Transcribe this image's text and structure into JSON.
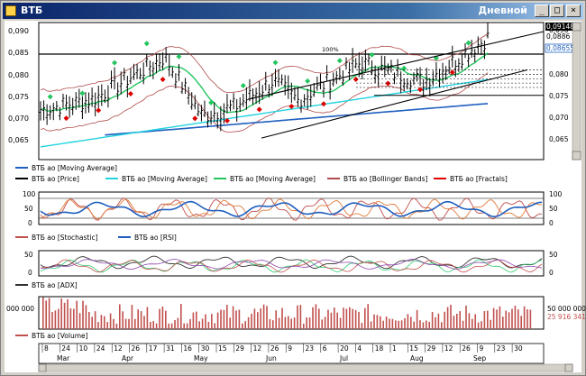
{
  "window": {
    "title": "ВТБ",
    "mode": "Дневной",
    "buttons": [
      "_",
      "□",
      "×"
    ]
  },
  "price_panel": {
    "y_ticks": [
      "0,090",
      "0,085",
      "0,080",
      "0,075",
      "0,070",
      "0,065"
    ],
    "last_price_top": "0,09148",
    "last_price_2": "0,0886",
    "last_price_3": "0,08655",
    "fib_label": "100%",
    "legend": [
      {
        "label": "ВТБ ао [Moving Average]",
        "color": "#1f5fbf"
      },
      {
        "label": "ВТБ ао [Price]",
        "color": "#000000"
      },
      {
        "label": "ВТБ ао [Moving Average]",
        "color": "#22d3e0"
      },
      {
        "label": "ВТБ ао [Moving Average]",
        "color": "#22c55e"
      },
      {
        "label": "ВТБ ао [Bollinger Bands]",
        "color": "#b14a4a"
      },
      {
        "label": "ВТБ ао [Fractals]",
        "color": "#dd0000"
      }
    ]
  },
  "osc_panel": {
    "y_ticks": [
      "100",
      "50",
      "0"
    ],
    "legend": [
      {
        "label": "ВТБ ао [Stochastic]",
        "color": "#c0504d"
      },
      {
        "label": "ВТБ ао [RSI]",
        "color": "#1f5fbf"
      }
    ]
  },
  "adx_panel": {
    "y_ticks": [
      "50",
      "0"
    ],
    "legend": [
      {
        "label": "ВТБ ао [ADX]",
        "color": "#333333"
      }
    ]
  },
  "volume_panel": {
    "y_tick": "000 000",
    "right_label_1": "50 000 000",
    "right_label_2": "25 916 341",
    "legend": [
      {
        "label": "ВТБ ао [Volume]",
        "color": "#c0504d"
      }
    ]
  },
  "x_axis": {
    "day_labels": [
      "8",
      "24",
      "10",
      "24",
      "12",
      "26",
      "17",
      "31",
      "16",
      "30",
      "15",
      "29",
      "12",
      "26",
      "9",
      "23",
      "6",
      "20",
      "4",
      "18",
      "1",
      "15",
      "29",
      "12",
      "26",
      "9",
      "23",
      "30"
    ],
    "month_labels": [
      "Mar",
      "Apr",
      "May",
      "Jun",
      "Jul",
      "Aug",
      "Sep"
    ]
  },
  "colors": {
    "price": "#000000",
    "ma_long": "#1f5fbf",
    "ma_mid": "#22d3e0",
    "ma_short": "#22c55e",
    "bollinger": "#b14a4a",
    "fractal_up": "#22c55e",
    "fractal_down": "#dd0000",
    "volume": "#c0504d"
  }
}
